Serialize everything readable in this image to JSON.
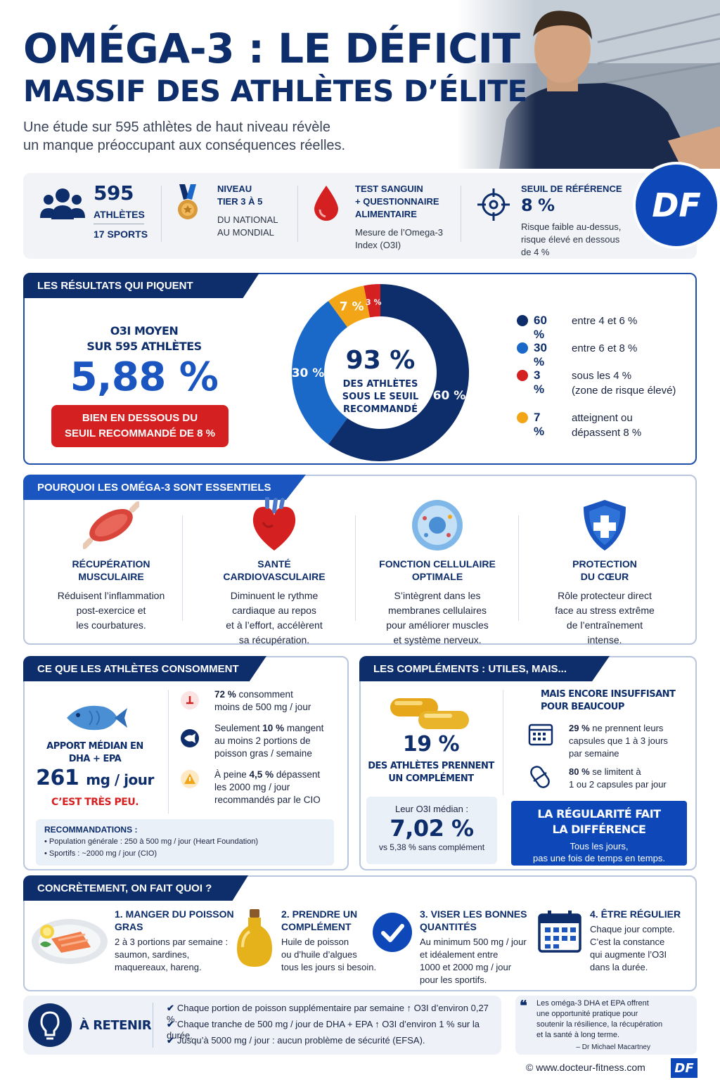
{
  "header": {
    "title_line1": "OMÉGA-3 : LE DÉFICIT",
    "title_line2": "MASSIF DES ATHLÈTES D’ÉLITE",
    "subtitle_line1": "Une étude sur 595 athlètes de haut niveau révèle",
    "subtitle_line2": "un manque préoccupant aux conséquences réelles."
  },
  "logo": "DF",
  "info": {
    "athletes_count": "595",
    "athletes_label": "ATHLÈTES",
    "sports": "17 SPORTS",
    "niveau_h1": "NIVEAU",
    "niveau_h2": "TIER 3 À 5",
    "niveau_t1": "DU NATIONAL",
    "niveau_t2": "AU MONDIAL",
    "test_h1": "TEST SANGUIN",
    "test_h2": "+ QUESTIONNAIRE",
    "test_h3": "ALIMENTAIRE",
    "test_t1": "Mesure de l’Omega-3",
    "test_t2": "Index (O3I)",
    "seuil_h": "SEUIL DE RÉFÉRENCE",
    "seuil_v": "8 %",
    "seuil_t1": "Risque faible au-dessus,",
    "seuil_t2": "risque élevé en dessous",
    "seuil_t3": "de 4 %"
  },
  "results": {
    "tab": "LES RÉSULTATS QUI PIQUENT",
    "o3i_label1": "O3I MOYEN",
    "o3i_label2": "SUR 595 ATHLÈTES",
    "o3i_value": "5,88 %",
    "pill1": "BIEN EN DESSOUS DU",
    "pill2": "SEUIL RECOMMANDÉ DE 8 %",
    "center_value": "93 %",
    "center_l1": "DES ATHLÈTES",
    "center_l2": "SOUS LE SEUIL",
    "center_l3": "RECOMMANDÉ"
  },
  "chart_data": {
    "type": "pie",
    "slices": [
      {
        "label": "60 %",
        "value": 60,
        "color": "#0d2d6b",
        "desc1": "entre 4 et 6 %",
        "desc2": ""
      },
      {
        "label": "30 %",
        "value": 30,
        "color": "#1a68c7",
        "desc1": "entre 6 et 8 %",
        "desc2": ""
      },
      {
        "label": "7 %",
        "value": 7,
        "color": "#f2a516",
        "desc1": "atteignent ou",
        "desc2": "dépassent 8 %"
      },
      {
        "label": "3 %",
        "value": 3,
        "color": "#d42020",
        "desc1": "sous les 4 %",
        "desc2": "(zone de risque élevé)"
      }
    ],
    "legend_order": [
      0,
      1,
      3,
      2
    ]
  },
  "why": {
    "tab": "POURQUOI LES OMÉGA-3 SONT ESSENTIELS",
    "items": [
      {
        "h1": "RÉCUPÉRATION",
        "h2": "MUSCULAIRE",
        "t": [
          "Réduisent l’inflammation",
          "post-exercice et",
          "les courbatures."
        ]
      },
      {
        "h1": "SANTÉ",
        "h2": "CARDIOVASCULAIRE",
        "t": [
          "Diminuent le rythme",
          "cardiaque au repos",
          "et à l’effort, accélèrent",
          "sa récupération."
        ]
      },
      {
        "h1": "FONCTION CELLULAIRE",
        "h2": "OPTIMALE",
        "t": [
          "S’intègrent dans les",
          "membranes cellulaires",
          "pour améliorer muscles",
          "et système nerveux."
        ]
      },
      {
        "h1": "PROTECTION",
        "h2": "DU CŒUR",
        "t": [
          "Rôle protecteur direct",
          "face au stress extrême",
          "de l’entraînement",
          "intense."
        ]
      }
    ]
  },
  "consumption": {
    "tab": "CE QUE LES ATHLÈTES CONSOMMENT",
    "median_l1": "APPORT MÉDIAN EN",
    "median_l2": "DHA + EPA",
    "median_value": "261",
    "median_unit": "mg / jour",
    "median_note": "C’EST TRÈS PEU.",
    "b1_bold": "72 %",
    "b1_rest": " consomment",
    "b1_l2": "moins de 500 mg / jour",
    "b2_pre": "Seulement ",
    "b2_bold": "10 %",
    "b2_rest": " mangent",
    "b2_l2": "au moins 2 portions de",
    "b2_l3": "poisson gras / semaine",
    "b3_pre": "À peine ",
    "b3_bold": "4,5 %",
    "b3_rest": " dépassent",
    "b3_l2": "les 2000 mg / jour",
    "b3_l3": "recommandés par le CIO",
    "rec_h": "RECOMMANDATIONS :",
    "rec_1": "• Population générale : 250 à 500 mg / jour (Heart Foundation)",
    "rec_2": "• Sportifs : ~2000 mg / jour (CIO)"
  },
  "supplements": {
    "tab": "LES COMPLÉMENTS : UTILES, MAIS...",
    "pct": "19 %",
    "pct_l1": "DES ATHLÈTES PRENNENT",
    "pct_l2": "UN COMPLÉMENT",
    "median_l": "Leur O3I médian :",
    "median_v": "7,02 %",
    "median_vs": "vs 5,38 % sans complément",
    "insuff_l1": "MAIS ENCORE INSUFFISANT",
    "insuff_l2": "POUR BEAUCOUP",
    "s1_bold": "29 %",
    "s1_rest": " ne prennent leurs",
    "s1_l2": "capsules que 1 à 3 jours",
    "s1_l3": "par semaine",
    "s2_bold": "80 %",
    "s2_rest": " se limitent à",
    "s2_l2": "1 ou 2 capsules par jour",
    "reg_h1": "LA RÉGULARITÉ FAIT",
    "reg_h2": "LA DIFFÉRENCE",
    "reg_t1": "Tous les jours,",
    "reg_t2": "pas une fois de temps en temps."
  },
  "concrete": {
    "tab": "CONCRÈTEMENT, ON FAIT QUOI ?",
    "steps": [
      {
        "h1": "1. MANGER DU POISSON",
        "h2": "GRAS",
        "t": [
          "2 à 3 portions par semaine :",
          "saumon, sardines,",
          "maquereaux, hareng."
        ]
      },
      {
        "h1": "2. PRENDRE UN",
        "h2": "COMPLÉMENT",
        "t": [
          "Huile de poisson",
          "ou d’huile d’algues",
          "tous les jours si besoin."
        ]
      },
      {
        "h1": "3. VISER LES BONNES",
        "h2": "QUANTITÉS",
        "t": [
          "Au minimum 500 mg / jour",
          "et idéalement entre",
          "1000 et 2000 mg / jour",
          "pour les sportifs."
        ]
      },
      {
        "h1": "4. ÊTRE RÉGULIER",
        "h2": "",
        "t": [
          "Chaque jour compte.",
          "C’est la constance",
          "qui augmente l’O3I",
          "dans la durée."
        ]
      }
    ]
  },
  "retenir": {
    "label": "À RETENIR",
    "l1": "Chaque portion de poisson supplémentaire par semaine ↑ O3I d’environ 0,27 %.",
    "l2": "Chaque tranche de 500 mg / jour de DHA + EPA ↑ O3I d’environ 1 % sur la durée.",
    "l3": "Jusqu’à 5000 mg / jour : aucun problème de sécurité (EFSA).",
    "check": "✔"
  },
  "quote": {
    "mark": "❝",
    "l1": "Les oméga-3 DHA et EPA offrent",
    "l2": "une opportunité pratique pour",
    "l3": "soutenir la résilience, la récupération",
    "l4": "et la santé à long terme.",
    "author": "– Dr Michael Macartney"
  },
  "footer": {
    "url": "© www.docteur-fitness.com",
    "logo": "DF"
  }
}
